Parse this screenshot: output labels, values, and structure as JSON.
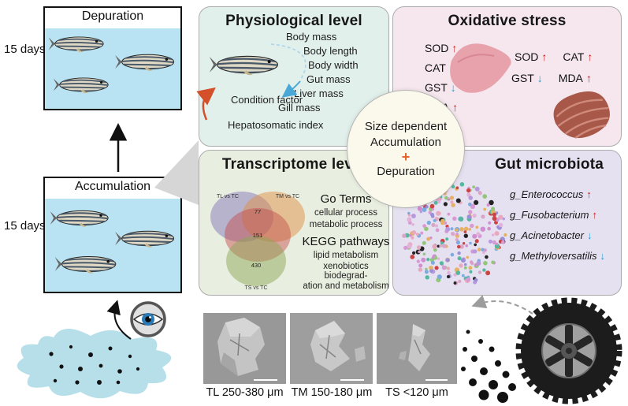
{
  "tanks": {
    "depuration": {
      "label": "Depuration",
      "duration": "15 days"
    },
    "accumulation": {
      "label": "Accumulation",
      "duration": "15 days"
    }
  },
  "center_circle": {
    "line1": "Size dependent",
    "line2": "Accumulation",
    "plus": "+",
    "line3": "Depuration"
  },
  "physiological": {
    "title": "Physiological level",
    "measures": [
      "Body mass",
      "Body length",
      "Body width",
      "Gut mass",
      "Liver mass",
      "Gill mass"
    ],
    "condition_factor": "Condition factor",
    "hepatosomatic_index": "Hepatosomatic index"
  },
  "oxidative": {
    "title": "Oxidative stress",
    "liver_markers": [
      {
        "label": "SOD",
        "arrow": "↑",
        "dir": "up"
      },
      {
        "label": "CAT",
        "arrow": "↑",
        "dir": "up"
      },
      {
        "label": "GST",
        "arrow": "↓",
        "dir": "down"
      },
      {
        "label": "MDA",
        "arrow": "↑",
        "dir": "up"
      }
    ],
    "intestine_markers": [
      {
        "label": "SOD",
        "arrow": "↑",
        "dir": "up"
      },
      {
        "label": "CAT",
        "arrow": "↑",
        "dir": "up"
      },
      {
        "label": "GST",
        "arrow": "↓",
        "dir": "down"
      },
      {
        "label": "MDA",
        "arrow": "↑",
        "dir": "up"
      }
    ]
  },
  "transcriptome": {
    "title": "Transcriptome level",
    "go_heading": "Go Terms",
    "go_terms": [
      "cellular process",
      "metabolic process"
    ],
    "kegg_heading": "KEGG pathways",
    "kegg_lines": [
      "lipid metabolism",
      "xenobiotics biodegrad-",
      "ation and metabolism"
    ],
    "venn": {
      "set1": "TL vs TC",
      "set2": "TM vs TC",
      "set3": "TS vs TC",
      "n_top": "77",
      "n_mid": "151",
      "n_bottom": "430"
    }
  },
  "microbiota": {
    "title": "Gut microbiota",
    "genera": [
      {
        "label": "g_Enterococcus",
        "arrow": "↑",
        "dir": "up"
      },
      {
        "label": "g_Fusobacterium",
        "arrow": "↑",
        "dir": "up"
      },
      {
        "label": "g_Acinetobacter",
        "arrow": "↓",
        "dir": "down"
      },
      {
        "label": "g_Methyloversatilis",
        "arrow": "↓",
        "dir": "down"
      }
    ]
  },
  "sem_labels": [
    "TL 250-380 μm",
    "TM 150-180 μm",
    "TS <120 μm"
  ]
}
